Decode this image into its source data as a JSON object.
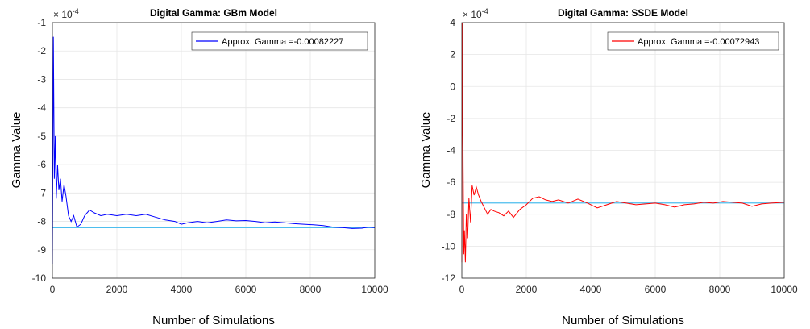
{
  "chart_data": [
    {
      "type": "line",
      "title": "Digital Gamma: GBm Model",
      "xlabel": "Number of Simulations",
      "ylabel": "Gamma Value",
      "exponent_label": "× 10",
      "exponent_power": "-4",
      "xlim": [
        0,
        10000
      ],
      "ylim": [
        -10,
        -1
      ],
      "xticks": [
        "0",
        "2000",
        "4000",
        "6000",
        "8000",
        "10000"
      ],
      "yticks": [
        "-1",
        "-2",
        "-3",
        "-4",
        "-5",
        "-6",
        "-7",
        "-8",
        "-9",
        "-10"
      ],
      "grid": true,
      "legend_position": "top-right",
      "legend_label": "Approx. Gamma =-0.00082227",
      "reference_value": -8.2227,
      "series": [
        {
          "name": "Approx. Gamma =-0.00082227",
          "color": "#0000ff",
          "x": [
            0,
            30,
            60,
            90,
            120,
            160,
            200,
            250,
            300,
            360,
            420,
            500,
            580,
            660,
            760,
            880,
            1000,
            1150,
            1300,
            1500,
            1700,
            2000,
            2300,
            2600,
            2900,
            3200,
            3500,
            3800,
            4000,
            4200,
            4500,
            4800,
            5100,
            5400,
            5700,
            6000,
            6300,
            6600,
            6900,
            7200,
            7500,
            7800,
            8100,
            8400,
            8700,
            9000,
            9300,
            9600,
            9800,
            10000
          ],
          "y": [
            -9.5,
            -1.5,
            -6.5,
            -5.0,
            -7.2,
            -6.0,
            -6.9,
            -6.5,
            -7.3,
            -6.7,
            -7.1,
            -7.8,
            -8.0,
            -7.8,
            -8.2,
            -8.1,
            -7.8,
            -7.6,
            -7.7,
            -7.8,
            -7.75,
            -7.8,
            -7.75,
            -7.8,
            -7.75,
            -7.85,
            -7.95,
            -8.0,
            -8.1,
            -8.05,
            -8.0,
            -8.05,
            -8.0,
            -7.95,
            -7.98,
            -7.97,
            -8.0,
            -8.05,
            -8.02,
            -8.05,
            -8.08,
            -8.1,
            -8.12,
            -8.15,
            -8.2,
            -8.22,
            -8.25,
            -8.24,
            -8.2,
            -8.22
          ]
        }
      ]
    },
    {
      "type": "line",
      "title": "Digital Gamma: SSDE Model",
      "xlabel": "Number of Simulations",
      "ylabel": "Gamma Value",
      "exponent_label": "× 10",
      "exponent_power": "-4",
      "xlim": [
        0,
        10000
      ],
      "ylim": [
        -12,
        4
      ],
      "xticks": [
        "0",
        "2000",
        "4000",
        "6000",
        "8000",
        "10000"
      ],
      "yticks": [
        "4",
        "2",
        "0",
        "-2",
        "-4",
        "-6",
        "-8",
        "-10",
        "-12"
      ],
      "grid": true,
      "legend_position": "top-right",
      "legend_label": "Approx. Gamma =-0.00072943",
      "reference_value": -7.2943,
      "series": [
        {
          "name": "Approx. Gamma =-0.00072943",
          "color": "#ff0000",
          "x": [
            0,
            20,
            40,
            60,
            80,
            110,
            140,
            180,
            220,
            270,
            320,
            380,
            450,
            520,
            600,
            700,
            800,
            900,
            1000,
            1150,
            1300,
            1450,
            1600,
            1800,
            2000,
            2200,
            2400,
            2600,
            2800,
            3000,
            3300,
            3600,
            3900,
            4200,
            4500,
            4800,
            5100,
            5400,
            5700,
            6000,
            6300,
            6600,
            6900,
            7200,
            7500,
            7800,
            8100,
            8400,
            8700,
            9000,
            9300,
            9600,
            10000
          ],
          "y": [
            -11.0,
            4.0,
            -5.0,
            -10.5,
            -9.0,
            -11.0,
            -8.0,
            -9.5,
            -7.0,
            -8.5,
            -6.2,
            -6.8,
            -6.3,
            -6.8,
            -7.2,
            -7.6,
            -8.0,
            -7.7,
            -7.8,
            -7.9,
            -8.1,
            -7.8,
            -8.2,
            -7.7,
            -7.4,
            -7.0,
            -6.9,
            -7.1,
            -7.2,
            -7.1,
            -7.3,
            -7.05,
            -7.3,
            -7.6,
            -7.4,
            -7.2,
            -7.3,
            -7.4,
            -7.35,
            -7.3,
            -7.4,
            -7.55,
            -7.4,
            -7.35,
            -7.25,
            -7.3,
            -7.2,
            -7.25,
            -7.3,
            -7.5,
            -7.35,
            -7.3,
            -7.25
          ]
        }
      ]
    }
  ],
  "colors": {
    "reference_line": "#4dbeee",
    "grid": "#e6e6e6",
    "axis": "#262626"
  }
}
